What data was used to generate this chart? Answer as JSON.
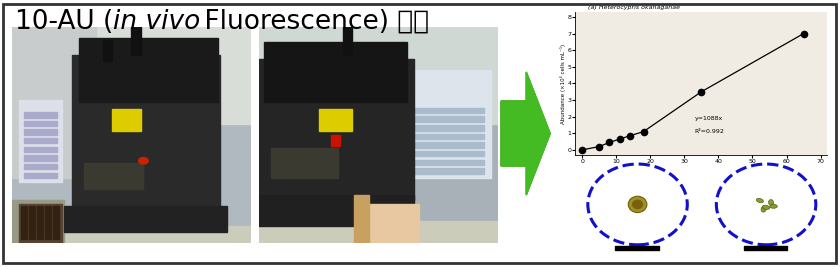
{
  "title_plain1": "10-AU (",
  "title_italic": "in vivo",
  "title_plain2": " Fluorescence) 측정",
  "title_fontsize": 20,
  "bg_color": "#ffffff",
  "border_color": "#333333",
  "arrow_color": "#44bb22",
  "graph_title": "(a) Heterocypris okanaganae",
  "graph_ylabel": "Abundance (×10⁴ cells mL⁻¹)",
  "graph_equation": "y=1088x",
  "graph_r2": "R²=0.992",
  "graph_x": [
    0,
    5,
    8,
    11,
    14,
    18,
    35,
    65
  ],
  "graph_y": [
    0,
    0.2,
    0.45,
    0.65,
    0.85,
    1.1,
    3.5,
    7.0
  ],
  "graph_xlim": [
    -2,
    72
  ],
  "graph_ylim": [
    -0.3,
    8.3
  ],
  "graph_xticks": [
    0,
    10,
    20,
    30,
    40,
    50,
    60,
    70
  ],
  "graph_yticks": [
    0,
    1.0,
    2.0,
    3.0,
    4.0,
    5.0,
    6.0,
    7.0,
    8.0
  ],
  "circle_color": "#1111cc",
  "circle_lw": 2.2,
  "micro_bg": "#c8d0cc",
  "photo_bg_left": "#8a8a80",
  "photo_bg_right": "#787870"
}
